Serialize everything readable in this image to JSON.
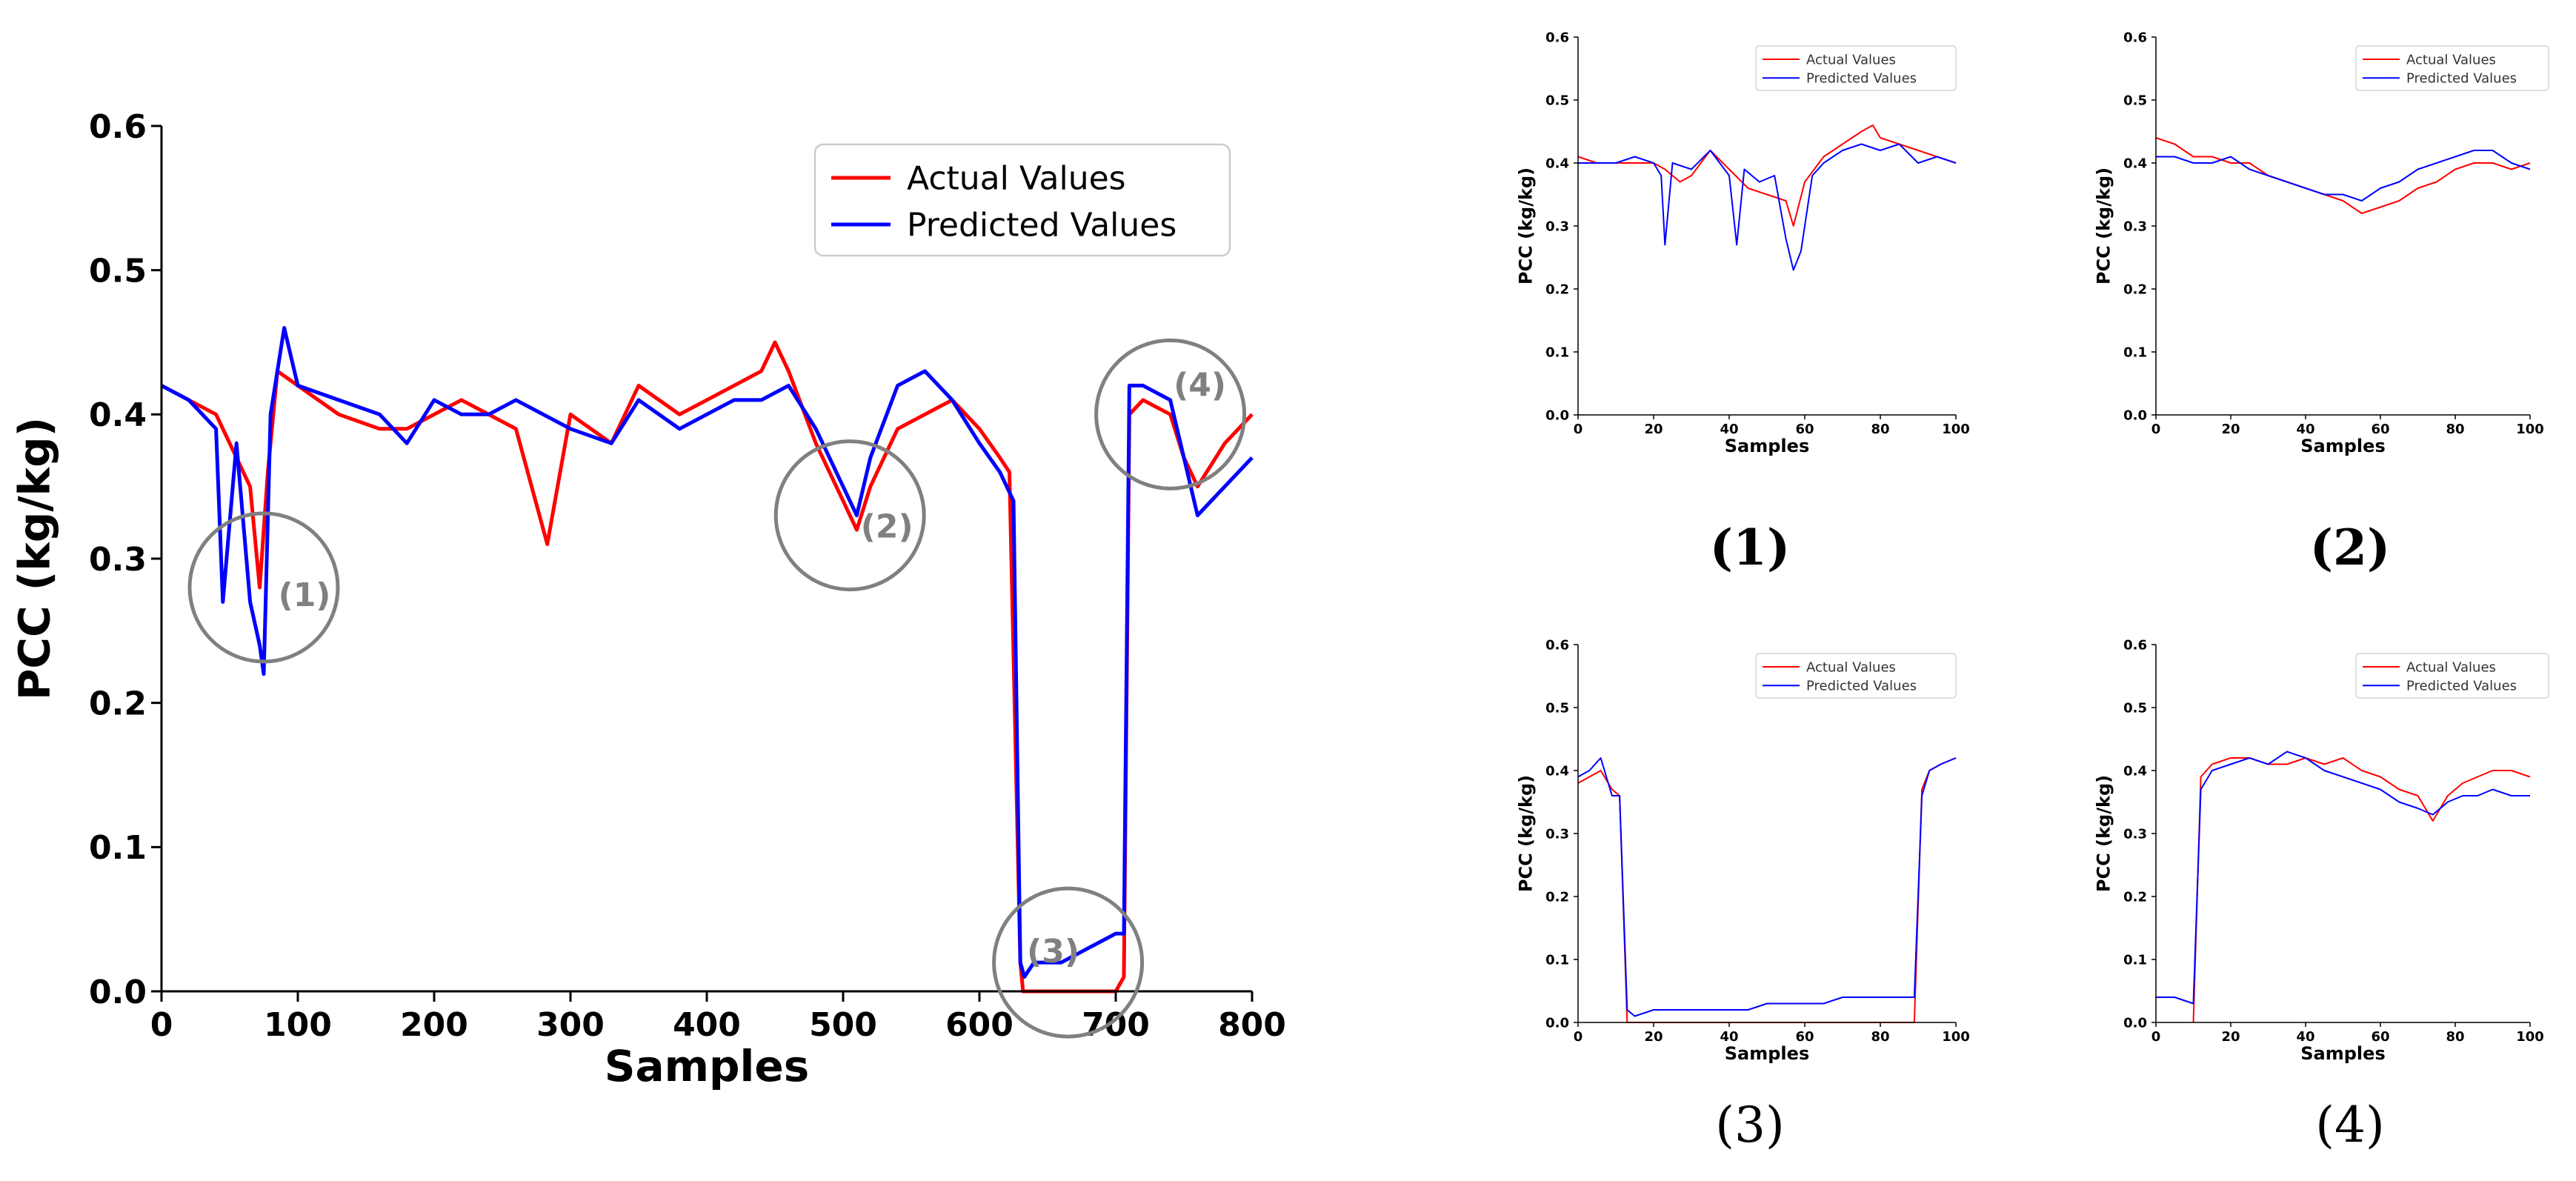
{
  "colors": {
    "actual": "#ff0000",
    "predicted": "#0000ff",
    "annotation": "#808080"
  },
  "chart_data": [
    {
      "id": "main",
      "type": "line",
      "title": "",
      "xlabel": "Samples",
      "ylabel": "PCC (kg/kg)",
      "xlim": [
        0,
        800
      ],
      "ylim": [
        0,
        0.6
      ],
      "xticks": [
        "0",
        "100",
        "200",
        "300",
        "400",
        "500",
        "600",
        "700",
        "800"
      ],
      "yticks": [
        "0.0",
        "0.1",
        "0.2",
        "0.3",
        "0.4",
        "0.5",
        "0.6"
      ],
      "legend": "top-right",
      "grid": false,
      "series": [
        {
          "name": "Actual Values",
          "x": [
            0,
            20,
            40,
            55,
            65,
            72,
            78,
            85,
            100,
            130,
            160,
            180,
            200,
            220,
            240,
            260,
            283,
            300,
            330,
            350,
            380,
            400,
            420,
            440,
            450,
            460,
            480,
            500,
            510,
            520,
            540,
            560,
            580,
            600,
            615,
            622,
            630,
            632,
            640,
            660,
            680,
            700,
            706,
            710,
            720,
            740,
            750,
            760,
            780,
            800
          ],
          "y": [
            0.42,
            0.41,
            0.4,
            0.37,
            0.35,
            0.28,
            0.36,
            0.43,
            0.42,
            0.4,
            0.39,
            0.39,
            0.4,
            0.41,
            0.4,
            0.39,
            0.31,
            0.4,
            0.38,
            0.42,
            0.4,
            0.41,
            0.42,
            0.43,
            0.45,
            0.43,
            0.38,
            0.34,
            0.32,
            0.35,
            0.39,
            0.4,
            0.41,
            0.39,
            0.37,
            0.36,
            0.02,
            0,
            0,
            0,
            0,
            0,
            0.01,
            0.4,
            0.41,
            0.4,
            0.37,
            0.35,
            0.38,
            0.4
          ]
        },
        {
          "name": "Predicted Values",
          "x": [
            0,
            20,
            40,
            45,
            55,
            65,
            72,
            75,
            80,
            90,
            100,
            130,
            160,
            180,
            200,
            220,
            240,
            260,
            300,
            330,
            350,
            380,
            400,
            420,
            440,
            460,
            480,
            500,
            510,
            520,
            540,
            560,
            580,
            600,
            615,
            625,
            630,
            633,
            640,
            660,
            680,
            700,
            706,
            710,
            720,
            740,
            750,
            760,
            770,
            800
          ],
          "y": [
            0.42,
            0.41,
            0.39,
            0.27,
            0.38,
            0.27,
            0.24,
            0.22,
            0.4,
            0.46,
            0.42,
            0.41,
            0.4,
            0.38,
            0.41,
            0.4,
            0.4,
            0.41,
            0.39,
            0.38,
            0.41,
            0.39,
            0.4,
            0.41,
            0.41,
            0.42,
            0.39,
            0.35,
            0.33,
            0.37,
            0.42,
            0.43,
            0.41,
            0.38,
            0.36,
            0.34,
            0.02,
            0.01,
            0.02,
            0.02,
            0.03,
            0.04,
            0.04,
            0.42,
            0.42,
            0.41,
            0.37,
            0.33,
            0.34,
            0.37
          ]
        }
      ],
      "annotations": [
        {
          "label": "(1)",
          "x": 75,
          "y": 0.28
        },
        {
          "label": "(2)",
          "x": 505,
          "y": 0.33
        },
        {
          "label": "(3)",
          "x": 665,
          "y": 0.02
        },
        {
          "label": "(4)",
          "x": 740,
          "y": 0.4
        }
      ]
    },
    {
      "id": "zoom1",
      "type": "line",
      "title": "",
      "xlabel": "Samples",
      "ylabel": "PCC (kg/kg)",
      "xlim": [
        0,
        100
      ],
      "ylim": [
        0,
        0.6
      ],
      "xticks": [
        "0",
        "20",
        "40",
        "60",
        "80",
        "100"
      ],
      "yticks": [
        "0.0",
        "0.1",
        "0.2",
        "0.3",
        "0.4",
        "0.5",
        "0.6"
      ],
      "legend": "top-right",
      "series": [
        {
          "name": "Actual Values",
          "x": [
            0,
            5,
            10,
            15,
            20,
            23,
            27,
            30,
            35,
            40,
            45,
            50,
            55,
            57,
            60,
            65,
            70,
            75,
            78,
            80,
            85,
            90,
            95,
            100
          ],
          "y": [
            0.41,
            0.4,
            0.4,
            0.4,
            0.4,
            0.39,
            0.37,
            0.38,
            0.42,
            0.39,
            0.36,
            0.35,
            0.34,
            0.3,
            0.37,
            0.41,
            0.43,
            0.45,
            0.46,
            0.44,
            0.43,
            0.42,
            0.41,
            0.4
          ]
        },
        {
          "name": "Predicted Values",
          "x": [
            0,
            5,
            10,
            15,
            20,
            22,
            23,
            25,
            30,
            35,
            40,
            42,
            44,
            48,
            52,
            55,
            57,
            59,
            62,
            65,
            70,
            75,
            80,
            85,
            90,
            95,
            100
          ],
          "y": [
            0.4,
            0.4,
            0.4,
            0.41,
            0.4,
            0.38,
            0.27,
            0.4,
            0.39,
            0.42,
            0.38,
            0.27,
            0.39,
            0.37,
            0.38,
            0.28,
            0.23,
            0.26,
            0.38,
            0.4,
            0.42,
            0.43,
            0.42,
            0.43,
            0.4,
            0.41,
            0.4
          ]
        }
      ]
    },
    {
      "id": "zoom2",
      "type": "line",
      "title": "",
      "xlabel": "Samples",
      "ylabel": "PCC (kg/kg)",
      "xlim": [
        0,
        100
      ],
      "ylim": [
        0,
        0.6
      ],
      "xticks": [
        "0",
        "20",
        "40",
        "60",
        "80",
        "100"
      ],
      "yticks": [
        "0.0",
        "0.1",
        "0.2",
        "0.3",
        "0.4",
        "0.5",
        "0.6"
      ],
      "legend": "top-right",
      "series": [
        {
          "name": "Actual Values",
          "x": [
            0,
            5,
            10,
            15,
            20,
            25,
            30,
            35,
            40,
            45,
            50,
            55,
            60,
            65,
            70,
            75,
            80,
            85,
            90,
            95,
            100
          ],
          "y": [
            0.44,
            0.43,
            0.41,
            0.41,
            0.4,
            0.4,
            0.38,
            0.37,
            0.36,
            0.35,
            0.34,
            0.32,
            0.33,
            0.34,
            0.36,
            0.37,
            0.39,
            0.4,
            0.4,
            0.39,
            0.4
          ]
        },
        {
          "name": "Predicted Values",
          "x": [
            0,
            5,
            10,
            15,
            20,
            25,
            30,
            35,
            40,
            45,
            50,
            55,
            60,
            65,
            70,
            75,
            80,
            85,
            90,
            95,
            100
          ],
          "y": [
            0.41,
            0.41,
            0.4,
            0.4,
            0.41,
            0.39,
            0.38,
            0.37,
            0.36,
            0.35,
            0.35,
            0.34,
            0.36,
            0.37,
            0.39,
            0.4,
            0.41,
            0.42,
            0.42,
            0.4,
            0.39
          ]
        }
      ]
    },
    {
      "id": "zoom3",
      "type": "line",
      "title": "",
      "xlabel": "Samples",
      "ylabel": "PCC (kg/kg)",
      "xlim": [
        0,
        100
      ],
      "ylim": [
        0,
        0.6
      ],
      "xticks": [
        "0",
        "20",
        "40",
        "60",
        "80",
        "100"
      ],
      "yticks": [
        "0.0",
        "0.1",
        "0.2",
        "0.3",
        "0.4",
        "0.5",
        "0.6"
      ],
      "legend": "top-right",
      "series": [
        {
          "name": "Actual Values",
          "x": [
            0,
            3,
            6,
            9,
            11,
            13,
            89,
            91,
            93,
            96,
            100
          ],
          "y": [
            0.38,
            0.39,
            0.4,
            0.37,
            0.36,
            0.0,
            0.0,
            0.37,
            0.4,
            0.41,
            0.42
          ]
        },
        {
          "name": "Predicted Values",
          "x": [
            0,
            3,
            6,
            9,
            11,
            13,
            15,
            20,
            25,
            30,
            35,
            40,
            45,
            50,
            55,
            60,
            65,
            70,
            75,
            80,
            85,
            89,
            91,
            93,
            96,
            100
          ],
          "y": [
            0.39,
            0.4,
            0.42,
            0.36,
            0.36,
            0.02,
            0.01,
            0.02,
            0.02,
            0.02,
            0.02,
            0.02,
            0.02,
            0.03,
            0.03,
            0.03,
            0.03,
            0.04,
            0.04,
            0.04,
            0.04,
            0.04,
            0.36,
            0.4,
            0.41,
            0.42
          ]
        }
      ]
    },
    {
      "id": "zoom4",
      "type": "line",
      "title": "",
      "xlabel": "Samples",
      "ylabel": "PCC (kg/kg)",
      "xlim": [
        0,
        100
      ],
      "ylim": [
        0,
        0.6
      ],
      "xticks": [
        "0",
        "20",
        "40",
        "60",
        "80",
        "100"
      ],
      "yticks": [
        "0.0",
        "0.1",
        "0.2",
        "0.3",
        "0.4",
        "0.5",
        "0.6"
      ],
      "legend": "top-right",
      "series": [
        {
          "name": "Actual Values",
          "x": [
            10,
            12,
            15,
            20,
            25,
            30,
            35,
            40,
            45,
            50,
            55,
            60,
            65,
            70,
            74,
            78,
            82,
            86,
            90,
            95,
            100
          ],
          "y": [
            0.0,
            0.39,
            0.41,
            0.42,
            0.42,
            0.41,
            0.41,
            0.42,
            0.41,
            0.42,
            0.4,
            0.39,
            0.37,
            0.36,
            0.32,
            0.36,
            0.38,
            0.39,
            0.4,
            0.4,
            0.39
          ]
        },
        {
          "name": "Predicted Values",
          "x": [
            0,
            5,
            10,
            12,
            15,
            20,
            25,
            30,
            35,
            40,
            45,
            50,
            55,
            60,
            65,
            70,
            74,
            78,
            82,
            86,
            90,
            95,
            100
          ],
          "y": [
            0.04,
            0.04,
            0.03,
            0.37,
            0.4,
            0.41,
            0.42,
            0.41,
            0.43,
            0.42,
            0.4,
            0.39,
            0.38,
            0.37,
            0.35,
            0.34,
            0.33,
            0.35,
            0.36,
            0.36,
            0.37,
            0.36,
            0.36
          ]
        }
      ]
    }
  ],
  "captions": [
    "(1)",
    "(2)",
    "(3)",
    "(4)"
  ]
}
